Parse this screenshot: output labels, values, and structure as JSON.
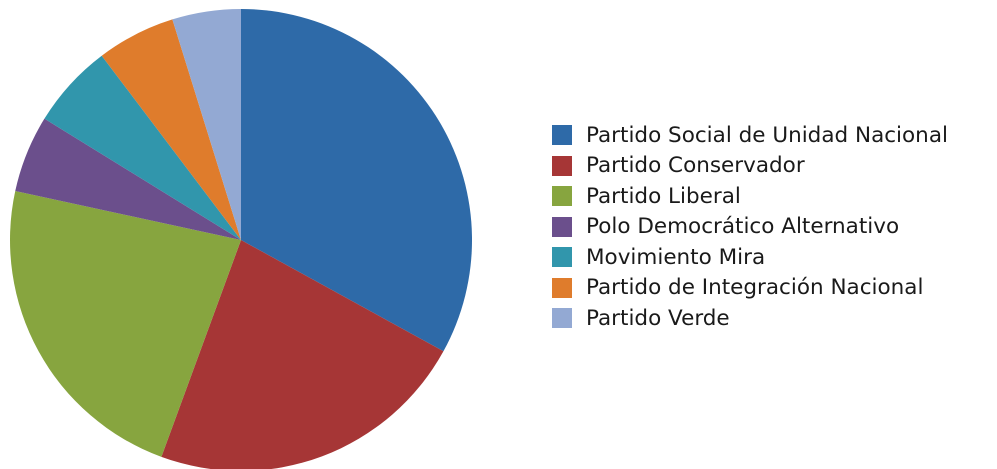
{
  "chart_data": {
    "type": "pie",
    "start_angle": "top (12 o'clock), clockwise",
    "legend_position": "right",
    "series": [
      {
        "name": "Partido Social de Unidad Nacional",
        "value": 33.0,
        "color": "#2e6aa8"
      },
      {
        "name": "Partido Conservador",
        "value": 22.6,
        "color": "#a63636"
      },
      {
        "name": "Partido Liberal",
        "value": 22.8,
        "color": "#87a53f"
      },
      {
        "name": "Polo Democrático Alternativo",
        "value": 5.4,
        "color": "#6b4f8c"
      },
      {
        "name": "Movimiento Mira",
        "value": 5.9,
        "color": "#3196ac"
      },
      {
        "name": "Partido de Integración Nacional",
        "value": 5.5,
        "color": "#df7c2c"
      },
      {
        "name": "Partido Verde",
        "value": 4.8,
        "color": "#93a9d3"
      }
    ]
  }
}
